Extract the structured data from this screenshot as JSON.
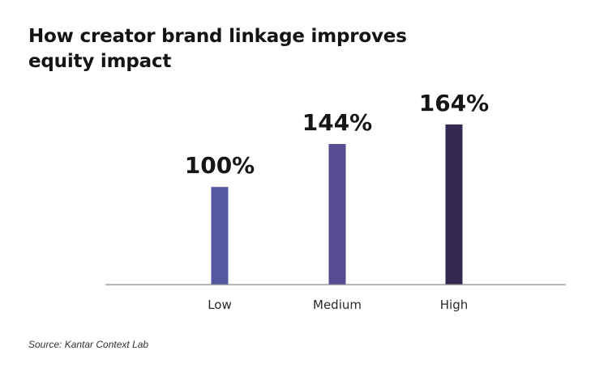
{
  "chart_data": {
    "type": "bar",
    "title": "How creator brand linkage improves equity impact",
    "categories": [
      "Low",
      "Medium",
      "High"
    ],
    "values": [
      100,
      144,
      164
    ],
    "value_labels": [
      "100%",
      "144%",
      "164%"
    ],
    "colors": [
      "#5358a0",
      "#574c92",
      "#352851"
    ],
    "xlabel": "",
    "ylabel": "",
    "ylim": [
      0,
      180
    ],
    "grid": false,
    "axis_color": "#8a8a8a"
  },
  "source": "Source: Kantar Context Lab"
}
